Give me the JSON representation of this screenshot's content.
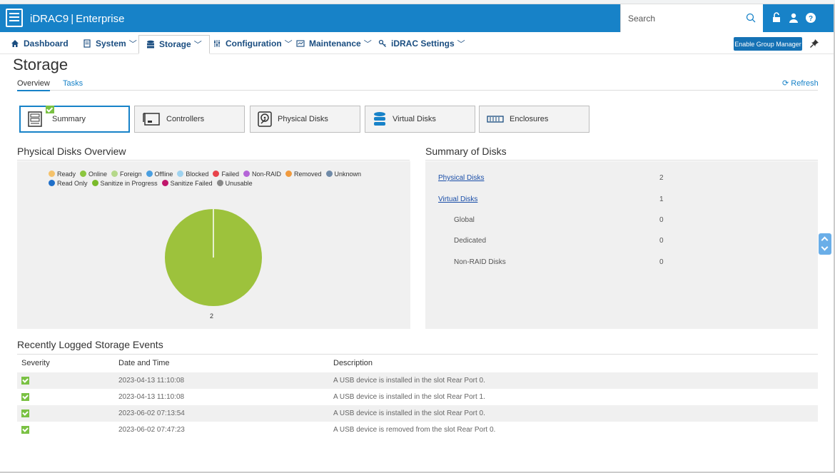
{
  "app": {
    "name": "iDRAC9",
    "edition": "Enterprise"
  },
  "search": {
    "placeholder": "Search"
  },
  "nav": {
    "dashboard": "Dashboard",
    "system": "System",
    "storage": "Storage",
    "configuration": "Configuration",
    "maintenance": "Maintenance",
    "idrac_settings": "iDRAC Settings",
    "group_manager": "Enable Group Manager"
  },
  "page": {
    "title": "Storage",
    "tabs": [
      "Overview",
      "Tasks"
    ],
    "refresh": "Refresh"
  },
  "categories": [
    "Summary",
    "Controllers",
    "Physical Disks",
    "Virtual Disks",
    "Enclosures"
  ],
  "physical_overview": {
    "title": "Physical Disks Overview",
    "legend": [
      {
        "label": "Ready",
        "color": "#f5c26b"
      },
      {
        "label": "Online",
        "color": "#8cc63f"
      },
      {
        "label": "Foreign",
        "color": "#b5d88a"
      },
      {
        "label": "Offline",
        "color": "#4a9fe0"
      },
      {
        "label": "Blocked",
        "color": "#9fd3f0"
      },
      {
        "label": "Failed",
        "color": "#e8434b"
      },
      {
        "label": "Non-RAID",
        "color": "#b565d8"
      },
      {
        "label": "Removed",
        "color": "#f09a3e"
      },
      {
        "label": "Unknown",
        "color": "#6f8aa8"
      },
      {
        "label": "Read Only",
        "color": "#1f6fc9"
      },
      {
        "label": "Sanitize in Progress",
        "color": "#7aba2a"
      },
      {
        "label": "Sanitize Failed",
        "color": "#c0166b"
      },
      {
        "label": "Unusable",
        "color": "#888888"
      }
    ],
    "pie_label": "2"
  },
  "chart_data": {
    "type": "pie",
    "labels": [
      "Online"
    ],
    "values": [
      2
    ],
    "colors": [
      "#9dc23c"
    ]
  },
  "summary": {
    "title": "Summary of Disks",
    "rows": [
      {
        "label": "Physical Disks",
        "value": "2"
      },
      {
        "label": "Virtual Disks",
        "value": "1"
      },
      {
        "label": "Global",
        "value": "0"
      },
      {
        "label": "Dedicated",
        "value": "0"
      },
      {
        "label": "Non-RAID Disks",
        "value": "0"
      }
    ]
  },
  "events": {
    "title": "Recently Logged Storage Events",
    "headers": [
      "Severity",
      "Date and Time",
      "Description"
    ],
    "rows": [
      {
        "date": "2023-04-13 11:10:08",
        "desc": "A USB device is installed in the slot Rear Port 0."
      },
      {
        "date": "2023-04-13 11:10:08",
        "desc": "A USB device is installed in the slot Rear Port 1."
      },
      {
        "date": "2023-06-02 07:13:54",
        "desc": "A USB device is installed in the slot Rear Port 0."
      },
      {
        "date": "2023-06-02 07:47:23",
        "desc": "A USB device is removed from the slot Rear Port 0."
      }
    ]
  }
}
